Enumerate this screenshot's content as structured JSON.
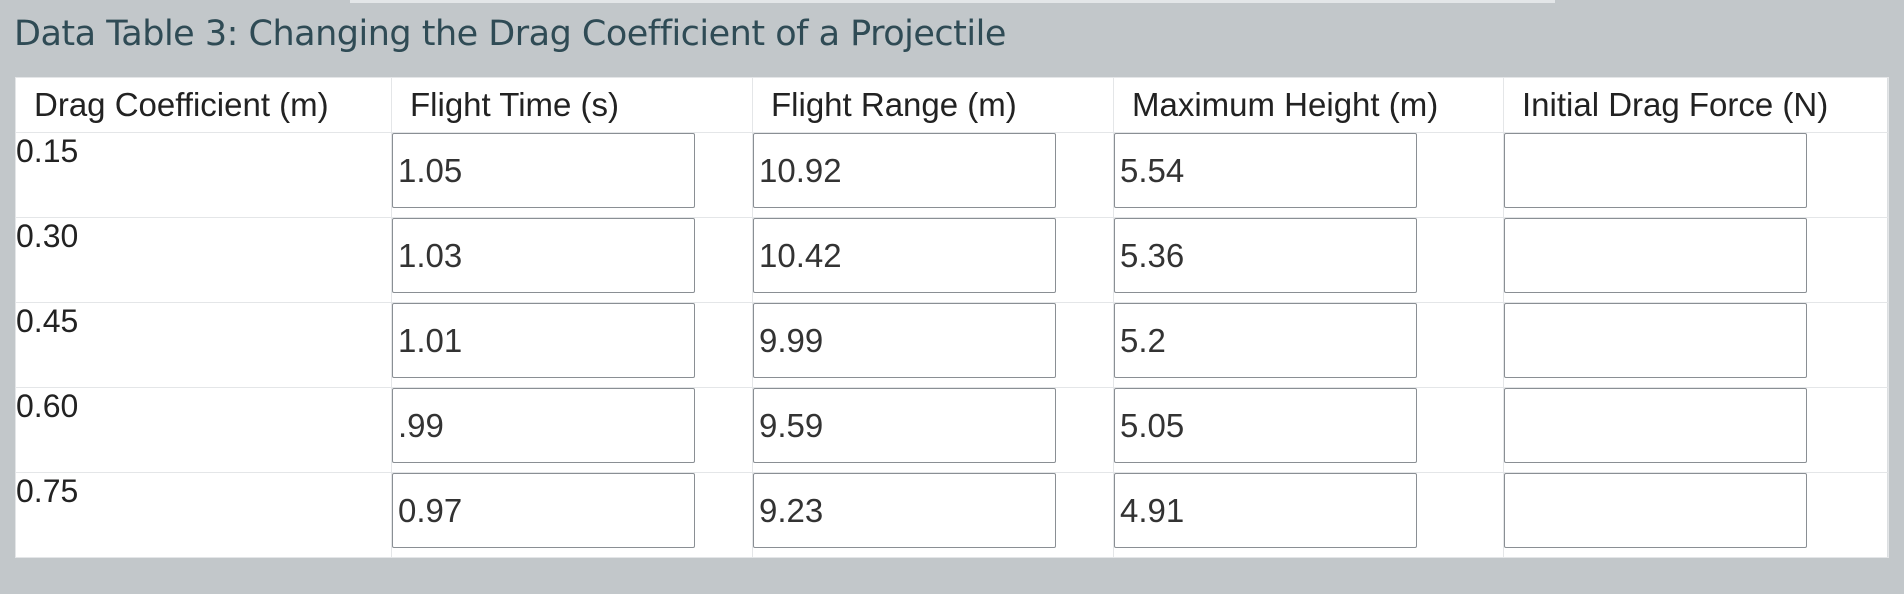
{
  "title": "Data Table 3: Changing the Drag Coefficient of a Projectile",
  "table": {
    "headers": [
      "Drag Coefficient (m)",
      "Flight Time (s)",
      "Flight Range (m)",
      "Maximum Height (m)",
      "Initial Drag Force (N)"
    ],
    "rows": [
      {
        "coefficient": "0.15",
        "flight_time": "1.05",
        "flight_range": "10.92",
        "max_height": "5.54",
        "drag_force": ""
      },
      {
        "coefficient": "0.30",
        "flight_time": "1.03",
        "flight_range": "10.42",
        "max_height": "5.36",
        "drag_force": ""
      },
      {
        "coefficient": "0.45",
        "flight_time": "1.01",
        "flight_range": "9.99",
        "max_height": "5.2",
        "drag_force": ""
      },
      {
        "coefficient": "0.60",
        "flight_time": ".99",
        "flight_range": "9.59",
        "max_height": "5.05",
        "drag_force": ""
      },
      {
        "coefficient": "0.75",
        "flight_time": "0.97",
        "flight_range": "9.23",
        "max_height": "4.91",
        "drag_force": ""
      }
    ]
  },
  "colors": {
    "background": "#c2c7ca",
    "title": "#2f4b55",
    "input_border": "#8a8f94"
  }
}
